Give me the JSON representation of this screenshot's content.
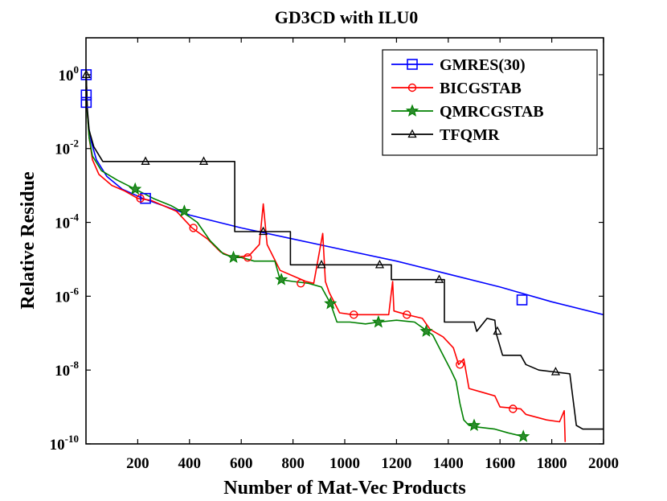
{
  "chart_data": {
    "type": "line",
    "title": "GD3CD with ILU0",
    "xlabel": "Number of Mat-Vec Products",
    "ylabel": "Relative Residue",
    "xlim": [
      0,
      2000
    ],
    "ylim_log10": [
      -10,
      1
    ],
    "yscale": "log",
    "grid": false,
    "legend_position": "top-right",
    "x_ticks": [
      200,
      400,
      600,
      800,
      1000,
      1200,
      1400,
      1600,
      1800,
      2000
    ],
    "x_tick_labels": [
      "200",
      "400",
      "600",
      "800",
      "1000",
      "1200",
      "1400",
      "1600",
      "1800",
      "2000"
    ],
    "y_ticks_log10": [
      -10,
      -8,
      -6,
      -4,
      -2,
      0
    ],
    "y_tick_labels": [
      {
        "base": "10",
        "exp": "-10"
      },
      {
        "base": "10",
        "exp": "-8"
      },
      {
        "base": "10",
        "exp": "-6"
      },
      {
        "base": "10",
        "exp": "-4"
      },
      {
        "base": "10",
        "exp": "-2"
      },
      {
        "base": "10",
        "exp": "0"
      }
    ],
    "series": [
      {
        "name": "GMRES(30)",
        "color": "#0000ff",
        "marker": "square",
        "log10_points": [
          [
            1,
            0
          ],
          [
            2,
            -0.6
          ],
          [
            4,
            -0.9
          ],
          [
            10,
            -1.4
          ],
          [
            20,
            -1.8
          ],
          [
            40,
            -2.3
          ],
          [
            80,
            -2.75
          ],
          [
            140,
            -3.1
          ],
          [
            220,
            -3.35
          ],
          [
            300,
            -3.55
          ],
          [
            400,
            -3.8
          ],
          [
            600,
            -4.15
          ],
          [
            800,
            -4.45
          ],
          [
            1000,
            -4.75
          ],
          [
            1200,
            -5.05
          ],
          [
            1400,
            -5.4
          ],
          [
            1600,
            -5.75
          ],
          [
            1800,
            -6.15
          ],
          [
            2000,
            -6.5
          ]
        ],
        "marker_points_log10": [
          [
            1,
            0
          ],
          [
            1,
            -0.55
          ],
          [
            1,
            -0.75
          ],
          [
            230,
            -3.35
          ],
          [
            1685,
            -6.1
          ]
        ]
      },
      {
        "name": "BICGSTAB",
        "color": "#ff0000",
        "marker": "circle",
        "log10_points": [
          [
            1,
            0
          ],
          [
            5,
            -1.0
          ],
          [
            12,
            -1.7
          ],
          [
            25,
            -2.3
          ],
          [
            50,
            -2.7
          ],
          [
            100,
            -3.0
          ],
          [
            150,
            -3.15
          ],
          [
            200,
            -3.35
          ],
          [
            250,
            -3.4
          ],
          [
            300,
            -3.55
          ],
          [
            350,
            -3.7
          ],
          [
            410,
            -4.15
          ],
          [
            470,
            -4.45
          ],
          [
            520,
            -4.8
          ],
          [
            570,
            -4.95
          ],
          [
            630,
            -4.9
          ],
          [
            670,
            -4.6
          ],
          [
            685,
            -3.5
          ],
          [
            700,
            -4.6
          ],
          [
            750,
            -5.3
          ],
          [
            800,
            -5.45
          ],
          [
            850,
            -5.6
          ],
          [
            880,
            -5.65
          ],
          [
            915,
            -4.3
          ],
          [
            925,
            -5.6
          ],
          [
            940,
            -5.9
          ],
          [
            980,
            -6.45
          ],
          [
            1030,
            -6.5
          ],
          [
            1100,
            -6.5
          ],
          [
            1170,
            -6.5
          ],
          [
            1185,
            -5.6
          ],
          [
            1190,
            -6.4
          ],
          [
            1240,
            -6.5
          ],
          [
            1300,
            -6.6
          ],
          [
            1330,
            -6.9
          ],
          [
            1380,
            -7.1
          ],
          [
            1420,
            -7.4
          ],
          [
            1440,
            -7.85
          ],
          [
            1460,
            -7.7
          ],
          [
            1480,
            -8.5
          ],
          [
            1530,
            -8.6
          ],
          [
            1580,
            -8.7
          ],
          [
            1600,
            -9.0
          ],
          [
            1680,
            -9.05
          ],
          [
            1700,
            -9.2
          ],
          [
            1780,
            -9.35
          ],
          [
            1830,
            -9.4
          ],
          [
            1848,
            -9.1
          ],
          [
            1852,
            -9.95
          ]
        ],
        "marker_points_log10": [
          [
            210,
            -3.35
          ],
          [
            415,
            -4.15
          ],
          [
            625,
            -4.95
          ],
          [
            830,
            -5.65
          ],
          [
            1035,
            -6.5
          ],
          [
            1240,
            -6.5
          ],
          [
            1445,
            -7.85
          ],
          [
            1650,
            -9.05
          ]
        ]
      },
      {
        "name": "QMRCGSTAB",
        "color": "#008000",
        "marker": "star",
        "log10_points": [
          [
            1,
            0
          ],
          [
            5,
            -1.0
          ],
          [
            12,
            -1.7
          ],
          [
            25,
            -2.2
          ],
          [
            60,
            -2.6
          ],
          [
            120,
            -2.85
          ],
          [
            190,
            -3.1
          ],
          [
            260,
            -3.35
          ],
          [
            330,
            -3.55
          ],
          [
            380,
            -3.75
          ],
          [
            430,
            -4.0
          ],
          [
            480,
            -4.5
          ],
          [
            530,
            -4.85
          ],
          [
            570,
            -4.95
          ],
          [
            600,
            -4.95
          ],
          [
            650,
            -5.05
          ],
          [
            700,
            -5.05
          ],
          [
            730,
            -5.05
          ],
          [
            750,
            -5.55
          ],
          [
            800,
            -5.6
          ],
          [
            860,
            -5.65
          ],
          [
            910,
            -5.75
          ],
          [
            945,
            -6.2
          ],
          [
            970,
            -6.7
          ],
          [
            1020,
            -6.7
          ],
          [
            1080,
            -6.75
          ],
          [
            1130,
            -6.7
          ],
          [
            1200,
            -6.65
          ],
          [
            1270,
            -6.7
          ],
          [
            1310,
            -6.9
          ],
          [
            1340,
            -7.05
          ],
          [
            1380,
            -7.6
          ],
          [
            1410,
            -8.0
          ],
          [
            1430,
            -8.3
          ],
          [
            1445,
            -8.9
          ],
          [
            1460,
            -9.35
          ],
          [
            1480,
            -9.5
          ],
          [
            1520,
            -9.55
          ],
          [
            1580,
            -9.6
          ],
          [
            1630,
            -9.7
          ],
          [
            1690,
            -9.8
          ]
        ],
        "marker_points_log10": [
          [
            190,
            -3.1
          ],
          [
            380,
            -3.7
          ],
          [
            570,
            -4.95
          ],
          [
            755,
            -5.55
          ],
          [
            945,
            -6.2
          ],
          [
            1130,
            -6.7
          ],
          [
            1315,
            -6.95
          ],
          [
            1500,
            -9.5
          ],
          [
            1690,
            -9.8
          ]
        ]
      },
      {
        "name": "TFQMR",
        "color": "#000000",
        "marker": "triangle",
        "log10_points": [
          [
            1,
            0
          ],
          [
            5,
            -0.9
          ],
          [
            12,
            -1.5
          ],
          [
            30,
            -1.95
          ],
          [
            65,
            -2.35
          ],
          [
            150,
            -2.35
          ],
          [
            300,
            -2.35
          ],
          [
            450,
            -2.35
          ],
          [
            575,
            -2.35
          ],
          [
            575,
            -4.25
          ],
          [
            685,
            -4.25
          ],
          [
            790,
            -4.25
          ],
          [
            790,
            -5.15
          ],
          [
            900,
            -5.15
          ],
          [
            1130,
            -5.15
          ],
          [
            1180,
            -5.15
          ],
          [
            1180,
            -5.55
          ],
          [
            1360,
            -5.55
          ],
          [
            1385,
            -5.55
          ],
          [
            1385,
            -6.7
          ],
          [
            1500,
            -6.7
          ],
          [
            1510,
            -6.95
          ],
          [
            1550,
            -6.6
          ],
          [
            1580,
            -6.65
          ],
          [
            1585,
            -7.0
          ],
          [
            1610,
            -7.6
          ],
          [
            1680,
            -7.6
          ],
          [
            1700,
            -7.85
          ],
          [
            1750,
            -8.0
          ],
          [
            1810,
            -8.05
          ],
          [
            1870,
            -8.1
          ],
          [
            1895,
            -9.5
          ],
          [
            1920,
            -9.6
          ],
          [
            2000,
            -9.6
          ]
        ],
        "marker_points_log10": [
          [
            1,
            0
          ],
          [
            230,
            -2.35
          ],
          [
            455,
            -2.35
          ],
          [
            685,
            -4.25
          ],
          [
            910,
            -5.15
          ],
          [
            1135,
            -5.15
          ],
          [
            1365,
            -5.55
          ],
          [
            1590,
            -6.95
          ],
          [
            1815,
            -8.05
          ]
        ]
      }
    ]
  }
}
